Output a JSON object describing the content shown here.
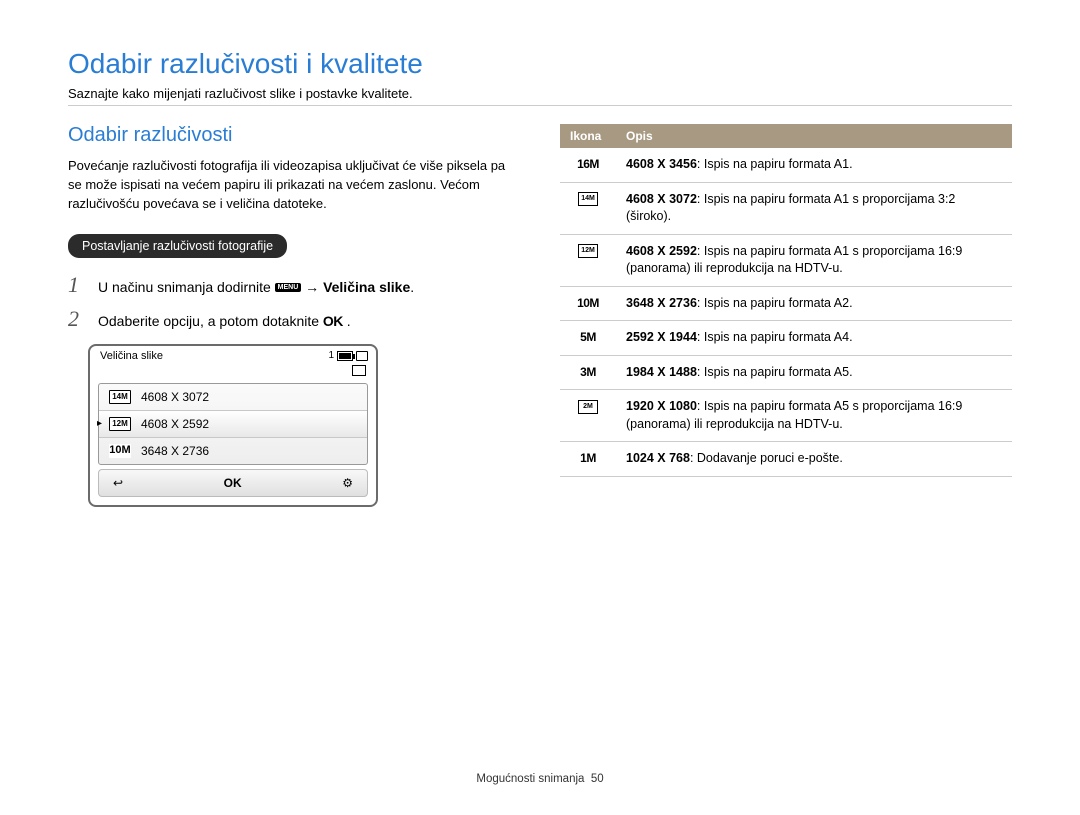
{
  "page": {
    "title": "Odabir razlučivosti i kvalitete",
    "subtitle": "Saznajte kako mijenjati razlučivost slike i postavke kvalitete.",
    "footer_section": "Mogućnosti snimanja",
    "footer_page": "50"
  },
  "left": {
    "section_title": "Odabir razlučivosti",
    "intro": "Povećanje razlučivosti fotografija ili videozapisa uključivat će više piksela pa se može ispisati na većem papiru ili prikazati na većem zaslonu. Većom razlučivošću povećava se i veličina datoteke.",
    "pill": "Postavljanje razlučivosti fotografije",
    "steps": [
      {
        "num": "1",
        "pre": "U načinu snimanja dodirnite ",
        "menu": "MENU",
        "arrow": " → ",
        "bold": "Veličina slike",
        "post": "."
      },
      {
        "num": "2",
        "pre": "Odaberite opciju, a potom dotaknite ",
        "ok": "OK",
        "post": " ."
      }
    ],
    "camera": {
      "header_title": "Veličina slike",
      "header_count": "1",
      "rows": [
        {
          "icon": "14M",
          "label": "4608 X 3072"
        },
        {
          "icon": "12M",
          "label": "4608 X 2592",
          "selected": true
        },
        {
          "icon": "10M",
          "label": "3648 X 2736"
        }
      ],
      "footer_back": "↩",
      "footer_ok": "OK",
      "footer_right": "⚙"
    }
  },
  "table": {
    "headers": {
      "icon": "Ikona",
      "desc": "Opis"
    },
    "rows": [
      {
        "icon_text": "16M",
        "icon_type": "text",
        "bold": "4608 X 3456",
        "rest": ": Ispis na papiru formata A1."
      },
      {
        "icon_text": "14M",
        "icon_type": "box",
        "bold": "4608 X 3072",
        "rest": ": Ispis na papiru formata A1 s proporcijama 3:2 (široko)."
      },
      {
        "icon_text": "12M",
        "icon_type": "box",
        "bold": "4608 X 2592",
        "rest": ": Ispis na papiru formata A1 s proporcijama 16:9 (panorama) ili reprodukcija na HDTV-u."
      },
      {
        "icon_text": "10M",
        "icon_type": "text",
        "bold": "3648 X 2736",
        "rest": ": Ispis na papiru formata A2."
      },
      {
        "icon_text": "5M",
        "icon_type": "text",
        "bold": "2592 X 1944",
        "rest": ": Ispis na papiru formata A4."
      },
      {
        "icon_text": "3M",
        "icon_type": "text",
        "bold": "1984 X 1488",
        "rest": ": Ispis na papiru formata A5."
      },
      {
        "icon_text": "2M",
        "icon_type": "box",
        "bold": "1920 X 1080",
        "rest": ": Ispis na papiru formata A5 s proporcijama 16:9 (panorama) ili reprodukcija na HDTV-u."
      },
      {
        "icon_text": "1M",
        "icon_type": "text",
        "bold": "1024 X 768",
        "rest": ": Dodavanje poruci e-pošte."
      }
    ]
  },
  "colors": {
    "accent": "#2a7dd4",
    "pill_bg": "#2b2b2b",
    "table_header_bg": "#a89a82",
    "border": "#cccccc"
  }
}
